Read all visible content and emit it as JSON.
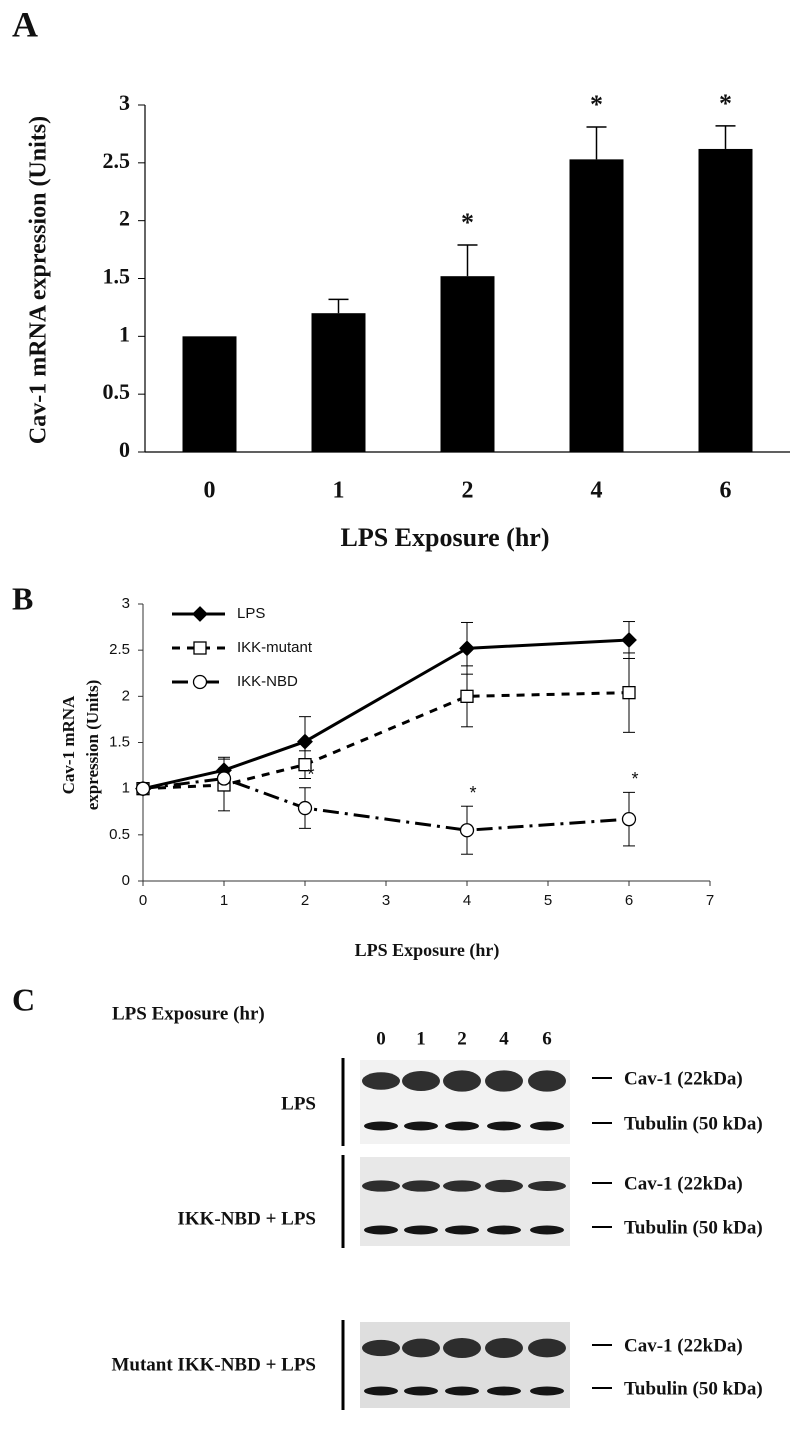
{
  "chart_data": [
    {
      "type": "bar",
      "panel_label": "A",
      "categories": [
        "0",
        "1",
        "2",
        "4",
        "6"
      ],
      "values": [
        1,
        1.2,
        1.52,
        2.53,
        2.62
      ],
      "errors": [
        0,
        0.12,
        0.27,
        0.28,
        0.2
      ],
      "significance": [
        null,
        null,
        "*",
        "*",
        "*"
      ],
      "color": "#000000",
      "xlabel": "LPS Exposure (hr)",
      "ylabel": "Cav-1 mRNA expression (Units)",
      "ylim": [
        0,
        3
      ],
      "yticks": [
        0,
        0.5,
        1,
        1.5,
        2,
        2.5,
        3
      ]
    },
    {
      "type": "line",
      "panel_label": "B",
      "x": [
        0,
        1,
        2,
        4,
        6
      ],
      "series": [
        {
          "name": "LPS",
          "color": "#000000",
          "linestyle": "solid",
          "marker": "diamond",
          "markerfacecolor": "#000000",
          "values": [
            1,
            1.2,
            1.51,
            2.52,
            2.61
          ],
          "errors": [
            0,
            0.14,
            0.27,
            0.28,
            0.2
          ]
        },
        {
          "name": "IKK-mutant",
          "color": "#000000",
          "linestyle": "dashed",
          "marker": "square",
          "markerfacecolor": "#ffffff",
          "values": [
            1,
            1.04,
            1.26,
            2.0,
            2.04
          ],
          "errors": [
            0,
            0.28,
            0.15,
            0.33,
            0.43
          ]
        },
        {
          "name": "IKK-NBD",
          "color": "#000000",
          "linestyle": "dashdot",
          "marker": "circle",
          "markerfacecolor": "#ffffff",
          "values": [
            1,
            1.11,
            0.79,
            0.55,
            0.67
          ],
          "errors": [
            0,
            0.05,
            0.22,
            0.26,
            0.29
          ],
          "significance": [
            null,
            null,
            "*",
            "*",
            "*"
          ]
        }
      ],
      "xlabel": "LPS Exposure (hr)",
      "ylabel": [
        "Cav-1 mRNA",
        "expression (Units)"
      ],
      "xlim": [
        0,
        7
      ],
      "xticks": [
        0,
        1,
        2,
        3,
        4,
        5,
        6,
        7
      ],
      "ylim": [
        0,
        3
      ],
      "yticks": [
        0,
        0.5,
        1,
        1.5,
        2,
        2.5,
        3
      ],
      "legend": "upper left"
    }
  ],
  "blot": {
    "panel_label": "C",
    "title": "LPS Exposure (hr)",
    "lanes": [
      "0",
      "1",
      "2",
      "4",
      "6"
    ],
    "rows": [
      {
        "label": "LPS",
        "bands": [
          "Cav-1 (22kDa)",
          "Tubulin (50 kDa)"
        ]
      },
      {
        "label": "IKK-NBD + LPS",
        "bands": [
          "Cav-1 (22kDa)",
          "Tubulin (50 kDa)"
        ]
      },
      {
        "label": "Mutant IKK-NBD + LPS",
        "bands": [
          "Cav-1 (22kDa)",
          "Tubulin (50 kDa)"
        ]
      }
    ]
  }
}
